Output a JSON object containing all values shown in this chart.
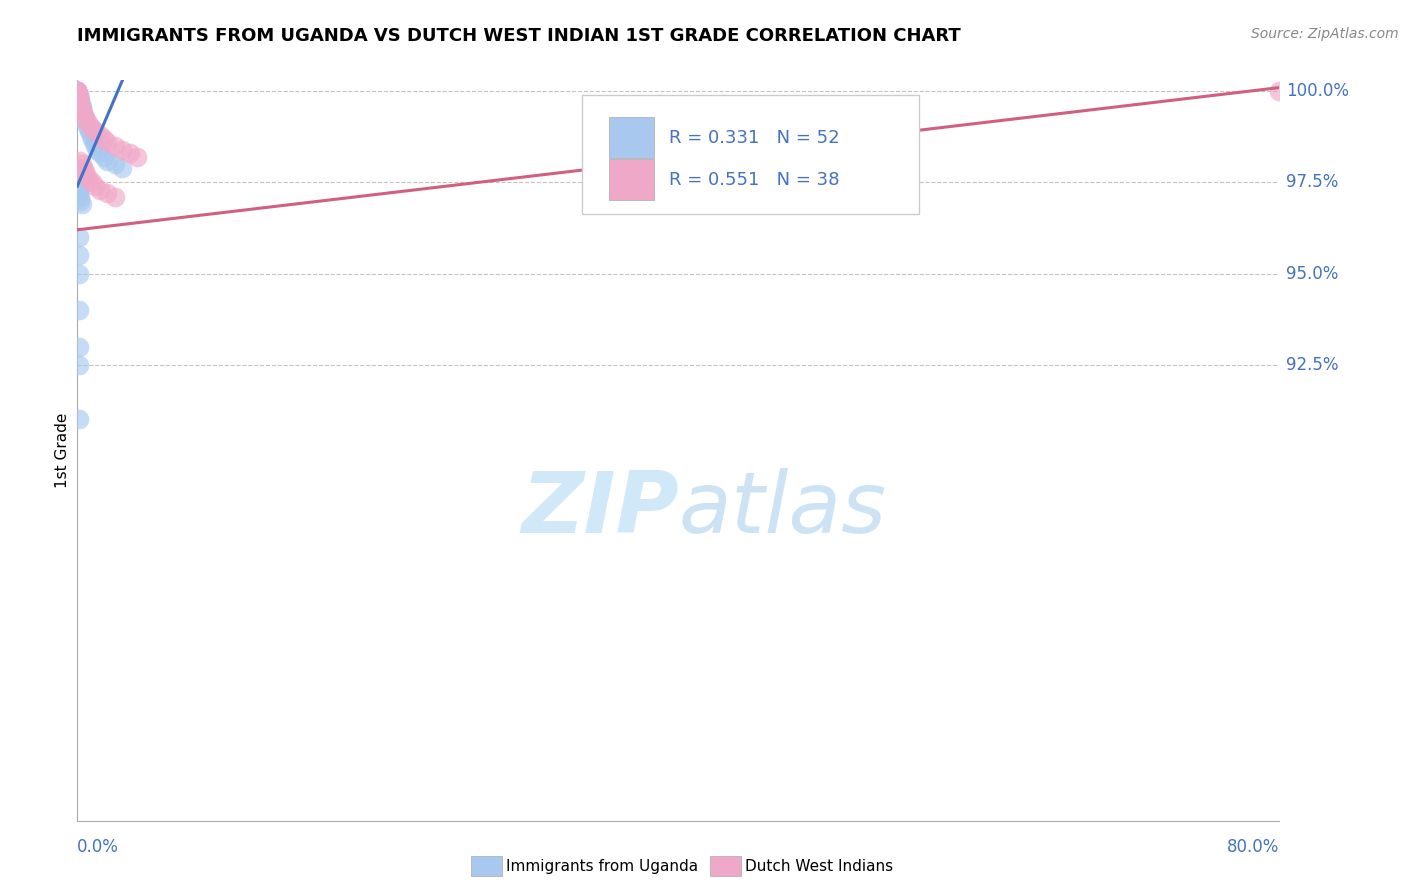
{
  "title": "IMMIGRANTS FROM UGANDA VS DUTCH WEST INDIAN 1ST GRADE CORRELATION CHART",
  "source": "Source: ZipAtlas.com",
  "ylabel": "1st Grade",
  "xmin": 0.0,
  "xmax": 0.8,
  "ymin": 0.8,
  "ymax": 1.003,
  "yticks": [
    1.0,
    0.975,
    0.95,
    0.925
  ],
  "ytick_labels": [
    "100.0%",
    "97.5%",
    "95.0%",
    "92.5%"
  ],
  "legend_r1": "R = 0.331",
  "legend_n1": "N = 52",
  "legend_r2": "R = 0.551",
  "legend_n2": "N = 38",
  "color_blue": "#a8c8f0",
  "color_pink": "#f0a8c8",
  "color_blue_dark": "#4472C4",
  "color_pink_dark": "#d06080",
  "color_text_blue": "#4472C4",
  "watermark_color": "#d0e8f8",
  "legend_label1": "Immigrants from Uganda",
  "legend_label2": "Dutch West Indians",
  "blue_x": [
    0.0,
    0.0,
    0.0,
    0.0,
    0.0,
    0.0,
    0.0,
    0.0,
    0.0,
    0.0,
    0.0,
    0.001,
    0.001,
    0.001,
    0.001,
    0.002,
    0.002,
    0.003,
    0.003,
    0.004,
    0.004,
    0.005,
    0.006,
    0.007,
    0.008,
    0.009,
    0.01,
    0.011,
    0.012,
    0.013,
    0.015,
    0.018,
    0.02,
    0.025,
    0.03,
    0.001,
    0.001,
    0.001,
    0.001,
    0.001,
    0.001,
    0.001,
    0.002,
    0.002,
    0.003,
    0.001,
    0.001,
    0.001,
    0.001,
    0.001,
    0.001,
    0.001
  ],
  "blue_y": [
    1.0,
    1.0,
    1.0,
    1.0,
    1.0,
    1.0,
    1.0,
    0.999,
    0.998,
    0.997,
    0.996,
    0.999,
    0.998,
    0.997,
    0.996,
    0.998,
    0.997,
    0.996,
    0.995,
    0.994,
    0.993,
    0.992,
    0.991,
    0.99,
    0.989,
    0.988,
    0.987,
    0.986,
    0.985,
    0.984,
    0.983,
    0.982,
    0.981,
    0.98,
    0.979,
    0.978,
    0.977,
    0.976,
    0.975,
    0.974,
    0.973,
    0.972,
    0.971,
    0.97,
    0.969,
    0.95,
    0.94,
    0.93,
    0.96,
    0.955,
    0.925,
    0.91
  ],
  "pink_x": [
    0.0,
    0.0,
    0.0,
    0.0,
    0.0,
    0.0,
    0.0,
    0.0,
    0.001,
    0.001,
    0.002,
    0.002,
    0.003,
    0.004,
    0.005,
    0.006,
    0.008,
    0.01,
    0.012,
    0.015,
    0.018,
    0.02,
    0.025,
    0.03,
    0.035,
    0.04,
    0.002,
    0.003,
    0.004,
    0.005,
    0.006,
    0.008,
    0.01,
    0.012,
    0.015,
    0.02,
    0.025,
    0.8
  ],
  "pink_y": [
    1.0,
    1.0,
    1.0,
    1.0,
    1.0,
    1.0,
    1.0,
    1.0,
    0.999,
    0.998,
    0.997,
    0.996,
    0.995,
    0.994,
    0.993,
    0.992,
    0.991,
    0.99,
    0.989,
    0.988,
    0.987,
    0.986,
    0.985,
    0.984,
    0.983,
    0.982,
    0.981,
    0.98,
    0.979,
    0.978,
    0.977,
    0.976,
    0.975,
    0.974,
    0.973,
    0.972,
    0.971,
    1.0
  ],
  "blue_line_x": [
    0.0,
    0.03
  ],
  "blue_line_y": [
    0.974,
    1.003
  ],
  "pink_line_x": [
    0.0,
    0.8
  ],
  "pink_line_y": [
    0.962,
    1.001
  ]
}
